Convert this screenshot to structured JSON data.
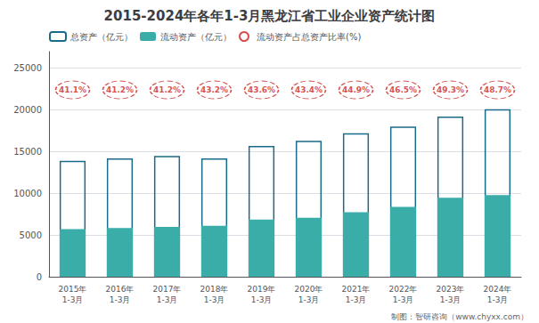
{
  "chart_data": {
    "type": "bar",
    "title": "2015-2024年各年1-3月黑龙江省工业企业资产统计图",
    "categories": [
      "2015年\n1-3月",
      "2016年\n1-3月",
      "2017年\n1-3月",
      "2018年\n1-3月",
      "2019年\n1-3月",
      "2020年\n1-3月",
      "2021年\n1-3月",
      "2022年\n1-3月",
      "2023年\n1-3月",
      "2024年\n1-3月"
    ],
    "series": [
      {
        "name": "总资产（亿元）",
        "color": "#1a6b8a",
        "values": [
          13900,
          14200,
          14500,
          14200,
          15700,
          16300,
          17200,
          18000,
          19200,
          20100
        ]
      },
      {
        "name": "流动资产（亿元）",
        "color": "#3aada8",
        "values": [
          5720,
          5850,
          5980,
          6120,
          6850,
          7070,
          7730,
          8370,
          9470,
          9790
        ]
      },
      {
        "name": "流动资产占总资产比率(%)",
        "type": "scatter",
        "marker": "circle",
        "color": "#cc2222",
        "data_labels": true,
        "values": [
          41.1,
          41.2,
          41.2,
          43.2,
          43.6,
          43.4,
          44.9,
          46.5,
          49.3,
          48.7
        ],
        "value_labels": [
          "41.1%",
          "41.2%",
          "41.2%",
          "43.2%",
          "43.6%",
          "43.4%",
          "44.9%",
          "46.5%",
          "49.3%",
          "48.7%"
        ]
      }
    ],
    "ylim": [
      0,
      27000
    ],
    "yticks": [
      0,
      5000,
      10000,
      15000,
      20000,
      25000
    ],
    "grid": true,
    "legend": "upper left",
    "annotations": [
      "制图：智研咨询（www.chyxx.com）"
    ]
  }
}
